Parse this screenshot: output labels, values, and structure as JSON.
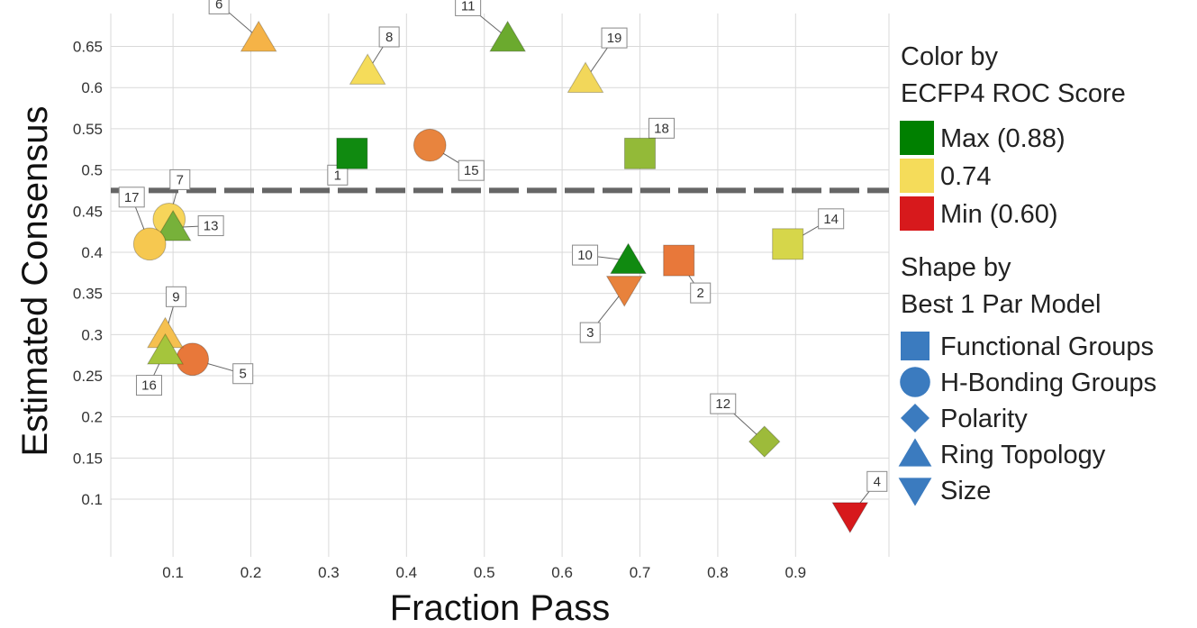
{
  "chart_data": {
    "type": "scatter",
    "xlabel": "Fraction Pass",
    "ylabel": "Estimated Consensus",
    "xlim": [
      0.02,
      1.02
    ],
    "ylim": [
      0.03,
      0.69
    ],
    "x_ticks": [
      "0.1",
      "0.2",
      "0.3",
      "0.4",
      "0.5",
      "0.6",
      "0.7",
      "0.8",
      "0.9"
    ],
    "x_tick_values": [
      0.1,
      0.2,
      0.3,
      0.4,
      0.5,
      0.6,
      0.7,
      0.8,
      0.9
    ],
    "y_ticks": [
      "0.1",
      "0.15",
      "0.2",
      "0.25",
      "0.3",
      "0.35",
      "0.4",
      "0.45",
      "0.5",
      "0.55",
      "0.6",
      "0.65"
    ],
    "y_tick_values": [
      0.1,
      0.15,
      0.2,
      0.25,
      0.3,
      0.35,
      0.4,
      0.45,
      0.5,
      0.55,
      0.6,
      0.65
    ],
    "grid": true,
    "reference_line": {
      "y": 0.475,
      "style": "dashed",
      "color": "#666666"
    },
    "color_scale": {
      "max": 0.88,
      "mid": 0.74,
      "min": 0.6,
      "max_color": "#008000",
      "mid_color": "#F5DC5A",
      "min_color": "#D7191C"
    },
    "points": [
      {
        "id": "1",
        "x": 0.33,
        "y": 0.52,
        "shape": "square",
        "color": "#108A10"
      },
      {
        "id": "2",
        "x": 0.75,
        "y": 0.39,
        "shape": "square",
        "color": "#E8783A"
      },
      {
        "id": "3",
        "x": 0.68,
        "y": 0.355,
        "shape": "triangle-down",
        "color": "#E8823C"
      },
      {
        "id": "4",
        "x": 0.97,
        "y": 0.08,
        "shape": "triangle-down",
        "color": "#D7191C"
      },
      {
        "id": "5",
        "x": 0.125,
        "y": 0.27,
        "shape": "circle",
        "color": "#E8783A"
      },
      {
        "id": "6",
        "x": 0.21,
        "y": 0.66,
        "shape": "triangle-up",
        "color": "#F5B347"
      },
      {
        "id": "7",
        "x": 0.095,
        "y": 0.44,
        "shape": "circle",
        "color": "#F7D55A"
      },
      {
        "id": "8",
        "x": 0.35,
        "y": 0.62,
        "shape": "triangle-up",
        "color": "#F5DC5A"
      },
      {
        "id": "9",
        "x": 0.09,
        "y": 0.3,
        "shape": "triangle-up",
        "color": "#F5C04F"
      },
      {
        "id": "10",
        "x": 0.685,
        "y": 0.39,
        "shape": "triangle-up",
        "color": "#108A10"
      },
      {
        "id": "11",
        "x": 0.53,
        "y": 0.66,
        "shape": "triangle-up",
        "color": "#6BAA2E"
      },
      {
        "id": "12",
        "x": 0.86,
        "y": 0.17,
        "shape": "diamond",
        "color": "#9DBB3A"
      },
      {
        "id": "13",
        "x": 0.1,
        "y": 0.43,
        "shape": "triangle-up",
        "color": "#77B13A"
      },
      {
        "id": "14",
        "x": 0.89,
        "y": 0.41,
        "shape": "square",
        "color": "#D6D64A"
      },
      {
        "id": "15",
        "x": 0.43,
        "y": 0.53,
        "shape": "circle",
        "color": "#E8843E"
      },
      {
        "id": "16",
        "x": 0.09,
        "y": 0.28,
        "shape": "triangle-up",
        "color": "#A5C53C"
      },
      {
        "id": "17",
        "x": 0.07,
        "y": 0.41,
        "shape": "circle",
        "color": "#F6C850"
      },
      {
        "id": "18",
        "x": 0.7,
        "y": 0.52,
        "shape": "square",
        "color": "#93BA38"
      },
      {
        "id": "19",
        "x": 0.63,
        "y": 0.61,
        "shape": "triangle-up",
        "color": "#F2D75A"
      }
    ]
  },
  "legend": {
    "color_title_1": "Color by",
    "color_title_2": "ECFP4 ROC Score",
    "color_items": [
      {
        "label": "Max (0.88)",
        "color": "#008000"
      },
      {
        "label": "0.74",
        "color": "#F5DC5A"
      },
      {
        "label": "Min (0.60)",
        "color": "#D7191C"
      }
    ],
    "shape_title_1": "Shape by",
    "shape_title_2": "Best 1 Par Model",
    "shape_color": "#3B7BBF",
    "shape_items": [
      {
        "label": "Functional Groups",
        "shape": "square"
      },
      {
        "label": "H-Bonding Groups",
        "shape": "circle"
      },
      {
        "label": "Polarity",
        "shape": "diamond"
      },
      {
        "label": "Ring Topology",
        "shape": "triangle-up"
      },
      {
        "label": "Size",
        "shape": "triangle-down"
      }
    ]
  }
}
